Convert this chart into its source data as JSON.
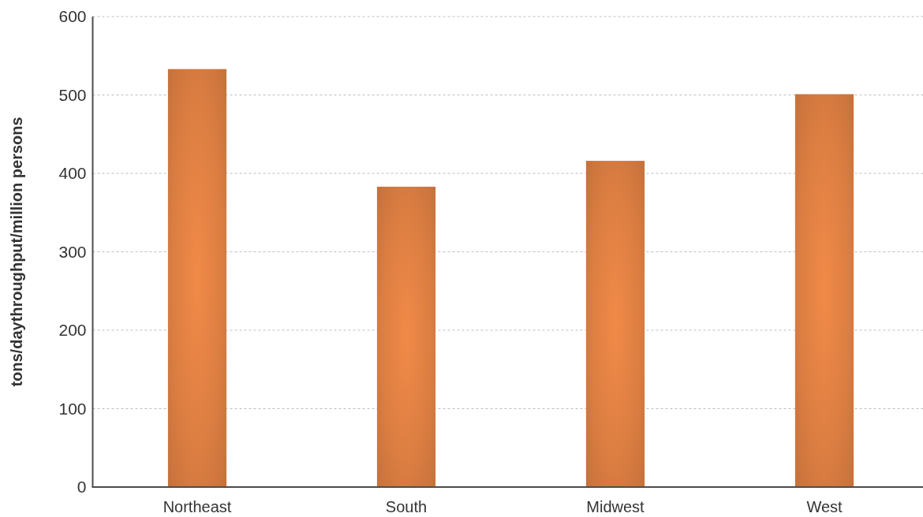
{
  "chart_data": {
    "type": "bar",
    "ylabel": "tons/daythroughput/million persons",
    "categories": [
      "Northeast",
      "South",
      "Midwest",
      "West"
    ],
    "values": [
      533,
      383,
      416,
      501
    ],
    "color": "#dc7e42",
    "ylim": [
      0,
      600
    ],
    "yticks": [
      0,
      100,
      200,
      300,
      400,
      500,
      600
    ],
    "grid": "y"
  }
}
